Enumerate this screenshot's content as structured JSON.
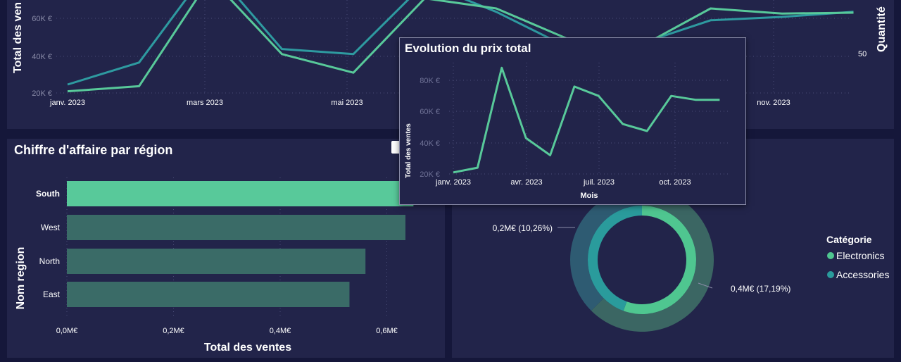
{
  "colors": {
    "line_green": "#58c99a",
    "line_teal": "#2e9aa0",
    "bar_selected": "#58c99a",
    "bar_dim": "#3a6b67",
    "donut_electronics": "#4fc690",
    "donut_accessories": "#2a9b9c",
    "donut_outer_1": "#3b6663",
    "donut_outer_2": "#2e5b72"
  },
  "top_chart": {
    "ylabel_left": "Total des ven",
    "ylabel_right": "Quantité",
    "right_tick": "50",
    "y_ticks": [
      "20K €",
      "40K €",
      "60K €"
    ],
    "x_labels": [
      "janv. 2023",
      "mars 2023",
      "mai 2023",
      "nov. 2023"
    ]
  },
  "chart_data": [
    {
      "type": "line",
      "title": "",
      "x": [
        "2023-01",
        "2023-02",
        "2023-03",
        "2023-04",
        "2023-05",
        "2023-06",
        "2023-07",
        "2023-08",
        "2023-09",
        "2023-10",
        "2023-11",
        "2023-12"
      ],
      "series": [
        {
          "name": "",
          "values": [
            21000,
            24000,
            88000,
            43000,
            32000,
            76000,
            70000,
            52000,
            47000,
            70000,
            67000,
            67500
          ]
        },
        {
          "name": "",
          "values": [
            25000,
            38000,
            95000,
            46000,
            43000,
            85000,
            68000,
            47000,
            49000,
            63000,
            65000,
            68000
          ]
        }
      ],
      "ylabel": "Total des ven",
      "y2label": "Quantité",
      "ylim": [
        20000,
        75000
      ]
    },
    {
      "type": "bar",
      "orientation": "horizontal",
      "title": "Chiffre d'affaire par région",
      "categories": [
        "South",
        "West",
        "North",
        "East"
      ],
      "values": [
        0.65,
        0.635,
        0.56,
        0.53
      ],
      "selected": "South",
      "xlabel": "Total des ventes",
      "ylabel": "Nom region",
      "x_ticks": [
        "0,0M€",
        "0,2M€",
        "0,4M€",
        "0,6M€"
      ],
      "xlim": [
        0,
        0.7
      ]
    },
    {
      "type": "pie",
      "title": "",
      "legend_title": "Catégorie",
      "legend": [
        "Electronics",
        "Accessories"
      ],
      "labels": [
        "0,2M€ (10,26%)",
        "0,4M€ (17,19%)"
      ],
      "legend_position": "right"
    },
    {
      "type": "line",
      "title": "Evolution du prix total",
      "x": [
        "2023-01",
        "2023-02",
        "2023-03",
        "2023-04",
        "2023-05",
        "2023-06",
        "2023-07",
        "2023-08",
        "2023-09",
        "2023-10",
        "2023-11",
        "2023-12"
      ],
      "series": [
        {
          "name": "",
          "values": [
            21000,
            24000,
            88000,
            43000,
            32000,
            76000,
            70000,
            52000,
            47500,
            70000,
            67500,
            67500
          ]
        }
      ],
      "x_labels": [
        "janv. 2023",
        "avr. 2023",
        "juil. 2023",
        "oct. 2023"
      ],
      "y_ticks": [
        "20K €",
        "40K €",
        "60K €",
        "80K €"
      ],
      "xlabel": "Mois",
      "ylabel": "Total des ventes",
      "ylim": [
        20000,
        80000
      ]
    }
  ]
}
